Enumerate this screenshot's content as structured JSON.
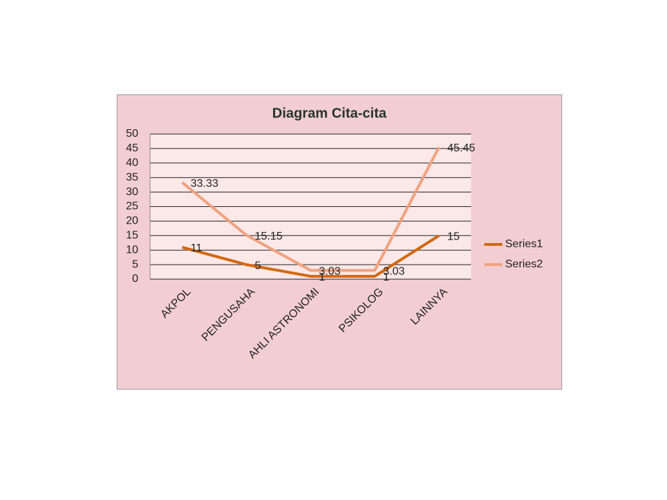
{
  "chart_data": {
    "type": "line",
    "title": "Diagram Cita-cita",
    "categories": [
      "AKPOL",
      "PENGUSAHA",
      "AHLI ASTRONOMI",
      "PSIKOLOG",
      "LAINNYA"
    ],
    "series": [
      {
        "name": "Series1",
        "color": "#d2680f",
        "values": [
          11,
          5,
          1,
          1,
          15
        ]
      },
      {
        "name": "Series2",
        "color": "#f0a27e",
        "values": [
          33.33,
          15.15,
          3.03,
          3.03,
          45.45
        ]
      }
    ],
    "ylim": [
      0,
      50
    ],
    "yticks": [
      0,
      5,
      10,
      15,
      20,
      25,
      30,
      35,
      40,
      45,
      50
    ],
    "grid": true,
    "legend": "right",
    "data_labels": true
  }
}
